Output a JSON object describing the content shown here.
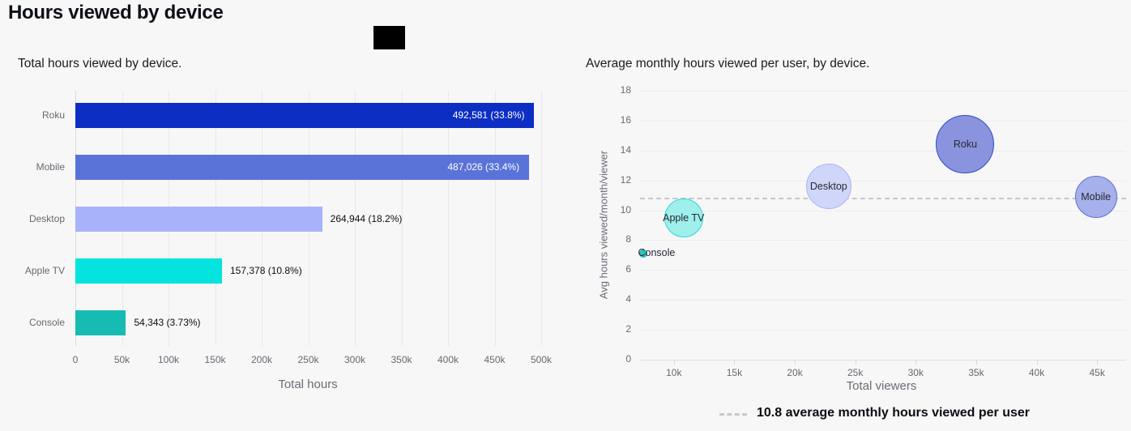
{
  "header": {
    "title": "Hours viewed by device"
  },
  "colors": {
    "background": "#f7f7f8",
    "grid": "#e8e8eb",
    "axis_line": "#dcdee4",
    "axis_text": "#66696f",
    "value_label_dark": "#0b0d12",
    "value_label_light": "#ffffff",
    "dashed_line": "#c5c6ca"
  },
  "chart_data": [
    {
      "type": "bar",
      "orientation": "horizontal",
      "title": "Total hours viewed by device.",
      "xlabel": "Total hours",
      "categories": [
        "Roku",
        "Mobile",
        "Desktop",
        "Apple TV",
        "Console"
      ],
      "values": [
        492581,
        487026,
        264944,
        157378,
        54343
      ],
      "value_labels": [
        "492,581 (33.8%)",
        "487,026 (33.4%)",
        "264,944 (18.2%)",
        "157,378 (10.8%)",
        "54,343 (3.73%)"
      ],
      "label_inside": [
        true,
        true,
        false,
        false,
        false
      ],
      "bar_colors": [
        "#0c2ec3",
        "#5a73d8",
        "#a8b2fa",
        "#04e3dd",
        "#16bcb2"
      ],
      "xlim": [
        0,
        500000
      ],
      "x_tick_values": [
        0,
        50000,
        100000,
        150000,
        200000,
        250000,
        300000,
        350000,
        400000,
        450000,
        500000
      ],
      "x_ticks": [
        "0",
        "50k",
        "100k",
        "150k",
        "200k",
        "250k",
        "300k",
        "350k",
        "400k",
        "450k",
        "500k"
      ],
      "grid": true
    },
    {
      "type": "scatter",
      "subtype": "bubble",
      "title": "Average monthly hours viewed per user, by device.",
      "xlabel": "Total viewers",
      "ylabel": "Avg hours viewed/month/viewer",
      "xlim": [
        7200,
        47400
      ],
      "ylim": [
        0,
        18
      ],
      "x_tick_values": [
        10000,
        15000,
        20000,
        25000,
        30000,
        35000,
        40000,
        45000
      ],
      "x_ticks": [
        "10k",
        "15k",
        "20k",
        "25k",
        "30k",
        "35k",
        "40k",
        "45k"
      ],
      "y_ticks": [
        0,
        2,
        4,
        6,
        8,
        10,
        12,
        14,
        16,
        18
      ],
      "points": [
        {
          "label": "Roku",
          "x": 34100,
          "y": 14.4,
          "r": 36,
          "fill": "#8a93dd",
          "stroke": "#2f4cc8",
          "label_outside": false
        },
        {
          "label": "Desktop",
          "x": 22800,
          "y": 11.6,
          "r": 28,
          "fill": "#cfd6f9",
          "stroke": "#aab4f2",
          "label_outside": false
        },
        {
          "label": "Mobile",
          "x": 44900,
          "y": 10.9,
          "r": 26,
          "fill": "#a6b0ea",
          "stroke": "#5d72d2",
          "label_outside": false
        },
        {
          "label": "Apple TV",
          "x": 10800,
          "y": 9.5,
          "r": 24,
          "fill": "#9fefec",
          "stroke": "#2ed9d3",
          "label_outside": false
        },
        {
          "label": "Console",
          "x": 7500,
          "y": 7.1,
          "r": 5,
          "fill": "#2fc4be",
          "stroke": "#19b4ad",
          "label_outside": true
        }
      ],
      "reference_line": {
        "y": 10.8,
        "style": "dashed",
        "legend_label": "10.8 average monthly hours viewed per user"
      },
      "grid": true,
      "legend_position": "bottom"
    }
  ]
}
